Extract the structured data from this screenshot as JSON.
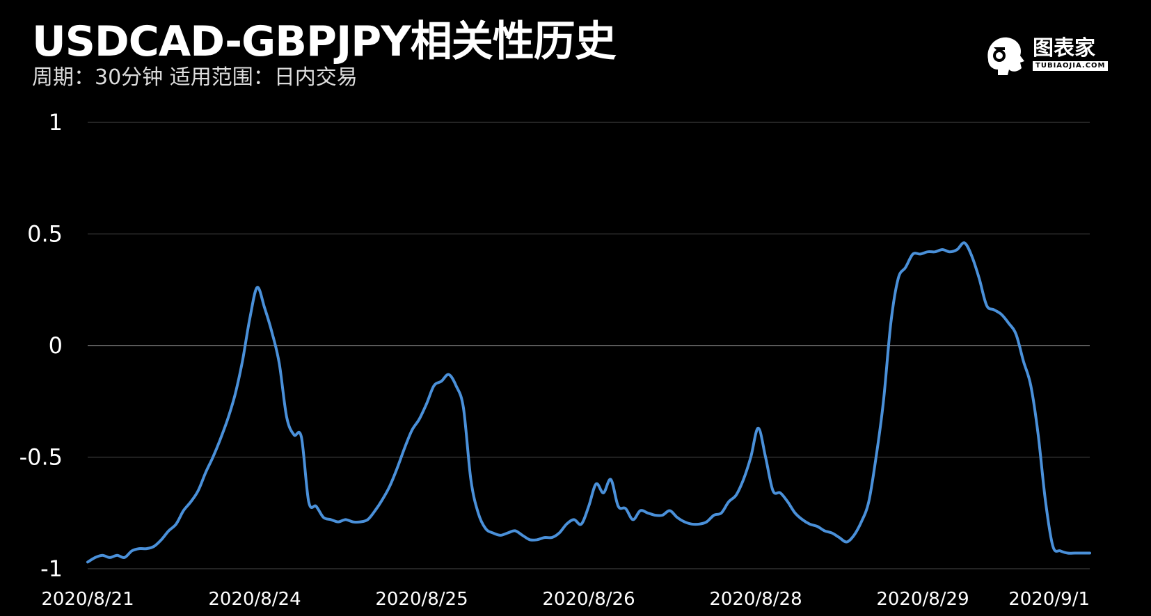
{
  "header": {
    "title": "USDCAD-GBPJPY相关性历史",
    "subtitle": "周期：30分钟  适用范围：日内交易"
  },
  "logo": {
    "name": "图表家",
    "sub": "TUBIAOJIA.COM",
    "icon": "robot-head-icon"
  },
  "colors": {
    "background": "#000000",
    "line": "#4a90d9",
    "grid": "#3a3a3a",
    "zero_line": "#5a5a5a",
    "text": "#ffffff"
  },
  "chart_data": {
    "type": "line",
    "title": "USDCAD-GBPJPY相关性历史",
    "xlabel": "",
    "ylabel": "",
    "ylim": [
      -1,
      1
    ],
    "yticks": [
      1,
      0.5,
      0,
      -0.5,
      -1
    ],
    "ytick_labels": [
      "1",
      "0.5",
      "0",
      "-0.5",
      "-1"
    ],
    "xtick_labels": [
      "2020/8/21",
      "2020/8/24",
      "2020/8/25",
      "2020/8/26",
      "2020/8/28",
      "2020/8/29",
      "2020/9/1"
    ],
    "grid": true,
    "legend": "none",
    "series": [
      {
        "values": [
          -0.97,
          -0.95,
          -0.94,
          -0.95,
          -0.94,
          -0.95,
          -0.92,
          -0.91,
          -0.91,
          -0.9,
          -0.87,
          -0.83,
          -0.8,
          -0.74,
          -0.7,
          -0.65,
          -0.57,
          -0.5,
          -0.42,
          -0.33,
          -0.22,
          -0.07,
          0.12,
          0.26,
          0.17,
          0.06,
          -0.08,
          -0.32,
          -0.4,
          -0.41,
          -0.7,
          -0.72,
          -0.77,
          -0.78,
          -0.79,
          -0.78,
          -0.79,
          -0.79,
          -0.78,
          -0.74,
          -0.69,
          -0.63,
          -0.55,
          -0.46,
          -0.38,
          -0.33,
          -0.26,
          -0.18,
          -0.16,
          -0.13,
          -0.18,
          -0.28,
          -0.6,
          -0.75,
          -0.82,
          -0.84,
          -0.85,
          -0.84,
          -0.83,
          -0.85,
          -0.87,
          -0.87,
          -0.86,
          -0.86,
          -0.84,
          -0.8,
          -0.78,
          -0.8,
          -0.72,
          -0.62,
          -0.66,
          -0.6,
          -0.72,
          -0.73,
          -0.78,
          -0.74,
          -0.75,
          -0.76,
          -0.76,
          -0.74,
          -0.77,
          -0.79,
          -0.8,
          -0.8,
          -0.79,
          -0.76,
          -0.75,
          -0.7,
          -0.67,
          -0.6,
          -0.5,
          -0.37,
          -0.5,
          -0.65,
          -0.66,
          -0.7,
          -0.75,
          -0.78,
          -0.8,
          -0.81,
          -0.83,
          -0.84,
          -0.86,
          -0.88,
          -0.85,
          -0.79,
          -0.7,
          -0.5,
          -0.25,
          0.1,
          0.3,
          0.35,
          0.41,
          0.41,
          0.42,
          0.42,
          0.43,
          0.42,
          0.43,
          0.46,
          0.4,
          0.3,
          0.18,
          0.16,
          0.14,
          0.1,
          0.05,
          -0.07,
          -0.18,
          -0.4,
          -0.7,
          -0.9,
          -0.92,
          -0.93,
          -0.93,
          -0.93,
          -0.93
        ]
      }
    ]
  }
}
